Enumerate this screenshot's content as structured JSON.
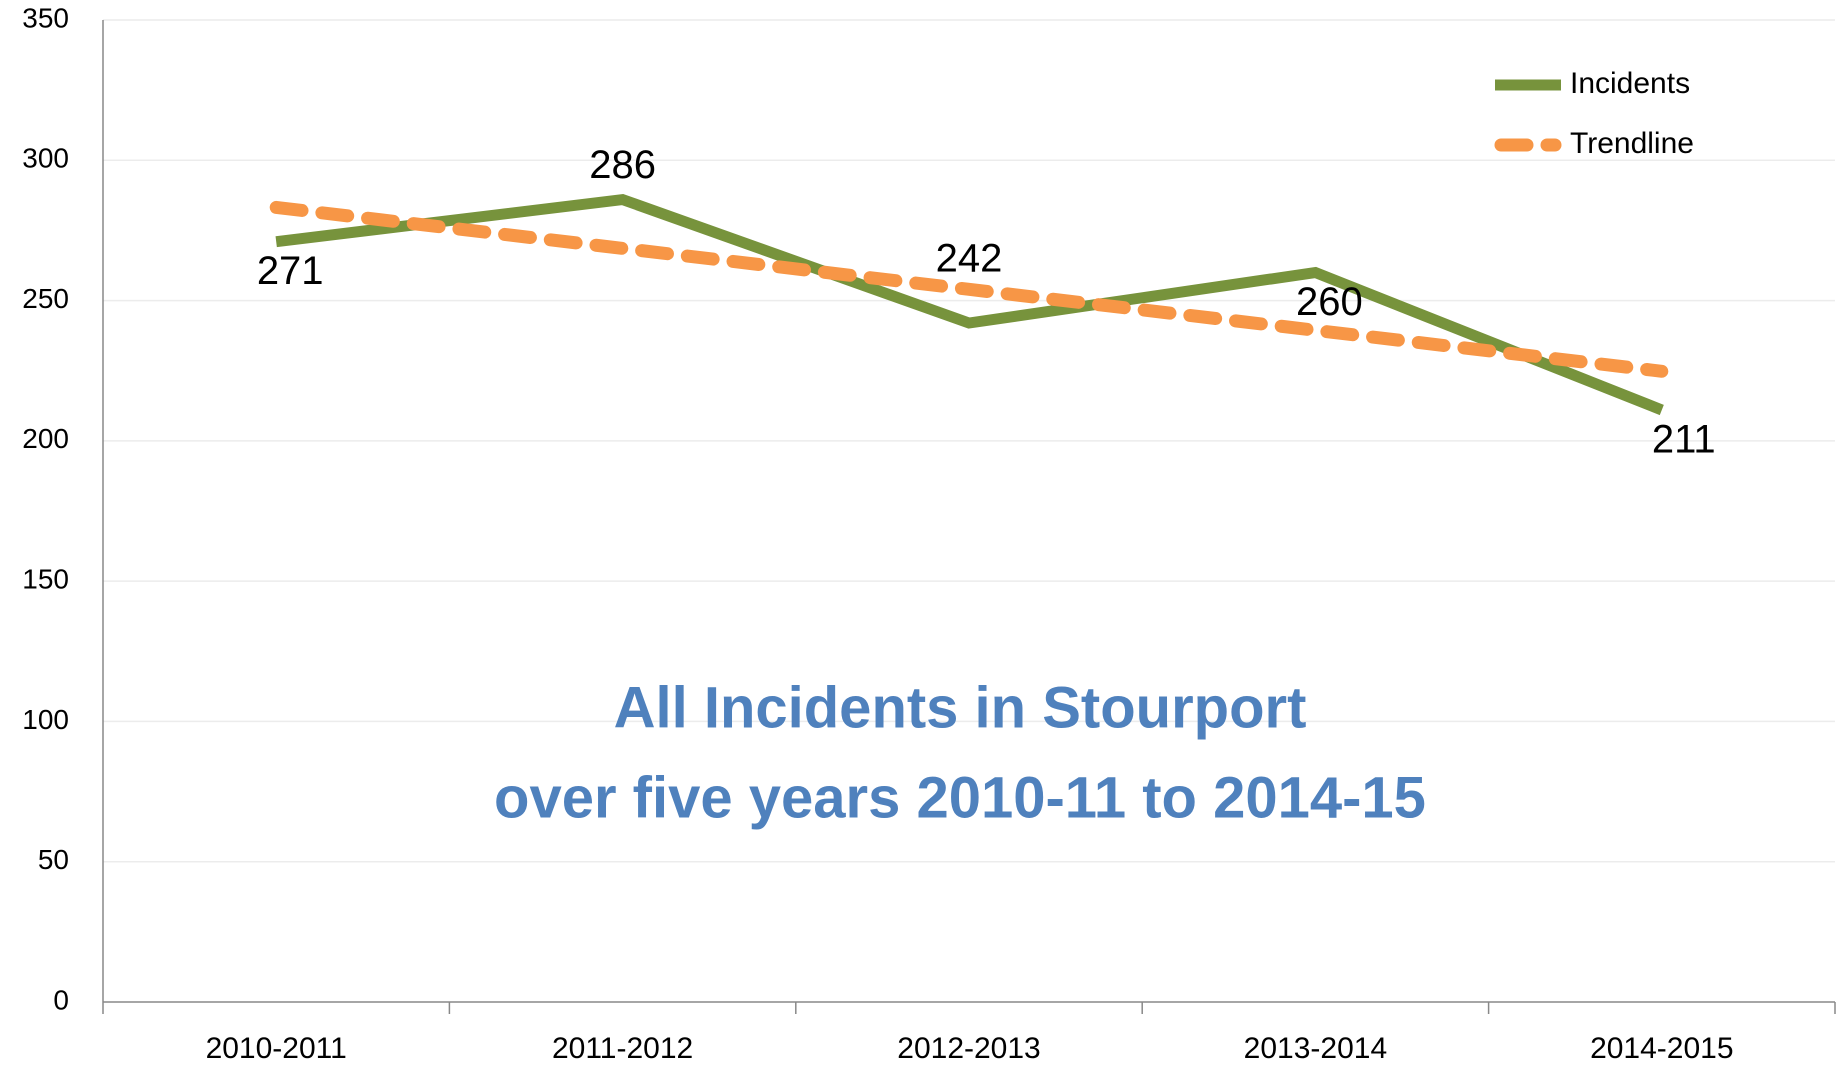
{
  "chart_data": {
    "type": "line",
    "title": [
      "All Incidents in Stourport",
      "over five years 2010-11 to 2014-15"
    ],
    "categories": [
      "2010-2011",
      "2011-2012",
      "2012-2013",
      "2013-2014",
      "2014-2015"
    ],
    "series": [
      {
        "name": "Incidents",
        "color": "#77933c",
        "values": [
          271,
          286,
          242,
          260,
          211
        ]
      },
      {
        "name": "Trendline",
        "color": "#f79646",
        "dashed": true,
        "values": [
          283.2,
          268.6,
          254,
          239.4,
          224.8
        ]
      }
    ],
    "data_labels_series": 0,
    "ylim": [
      0,
      350
    ],
    "yticks": [
      0,
      50,
      100,
      150,
      200,
      250,
      300,
      350
    ],
    "grid": true,
    "legend": "top-right"
  }
}
